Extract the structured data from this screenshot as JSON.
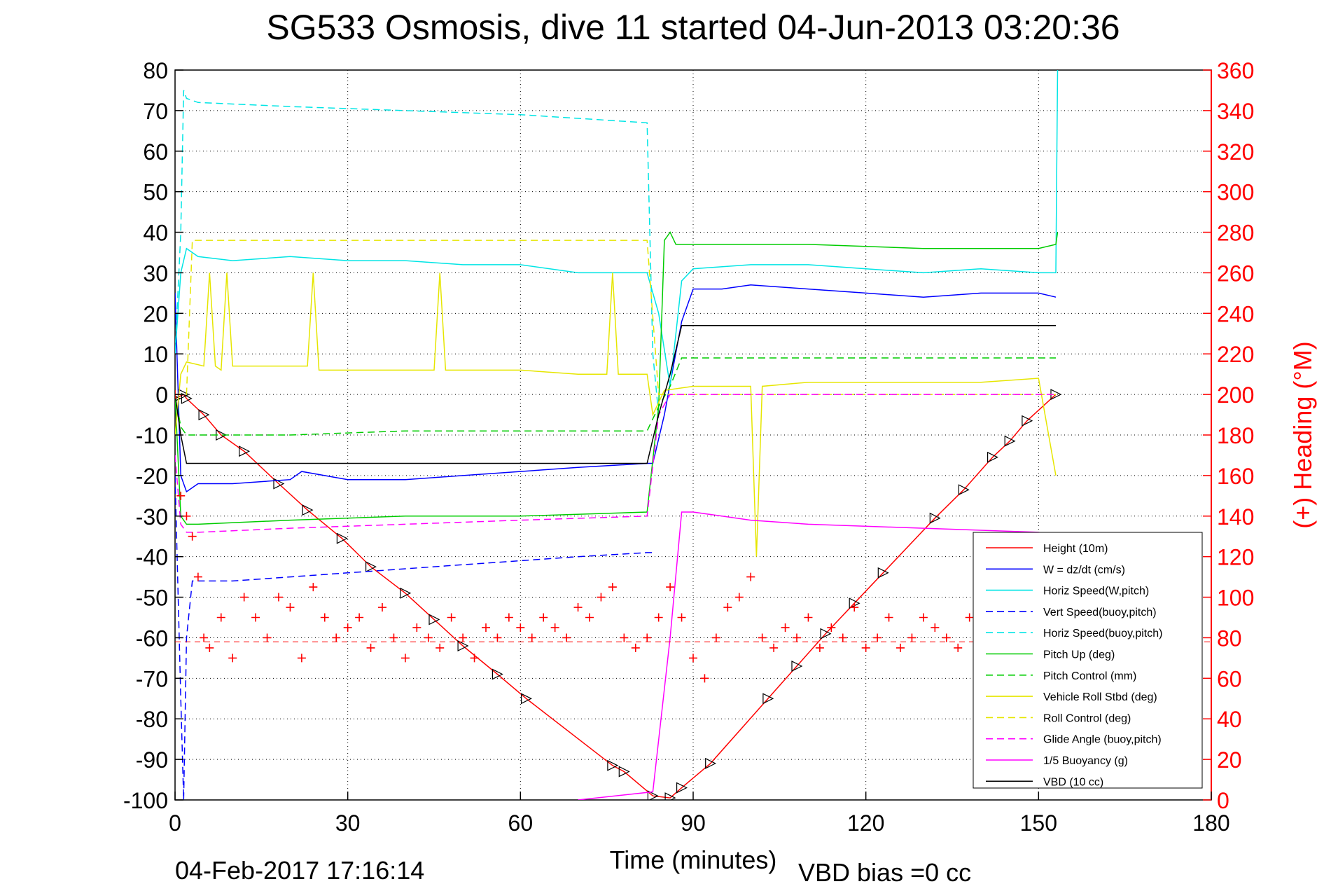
{
  "chart_data": {
    "type": "line",
    "title": "SG533 Osmosis, dive 11 started 04-Jun-2013 03:20:36",
    "xlabel": "Time (minutes)",
    "ylabel_right": "(+) Heading (°M)",
    "xlim": [
      0,
      180
    ],
    "ylim": [
      -100,
      80
    ],
    "ylim_right": [
      0,
      360
    ],
    "x_ticks": [
      "0",
      "30",
      "60",
      "90",
      "120",
      "150",
      "180"
    ],
    "y_ticks": [
      "80",
      "70",
      "60",
      "50",
      "40",
      "30",
      "20",
      "10",
      "0",
      "-10",
      "-20",
      "-30",
      "-40",
      "-50",
      "-60",
      "-70",
      "-80",
      "-90",
      "-100"
    ],
    "y_ticks_right": [
      "360",
      "340",
      "320",
      "300",
      "280",
      "260",
      "240",
      "220",
      "200",
      "180",
      "160",
      "140",
      "120",
      "100",
      "80",
      "60",
      "40",
      "20",
      "0"
    ],
    "footer_date": "04-Feb-2017 17:16:14",
    "footer_bias": "VBD bias =0 cc",
    "legend": [
      {
        "label": "Height (10m)",
        "color": "#ff0000",
        "dash": "solid"
      },
      {
        "label": "W = dz/dt (cm/s)",
        "color": "#0000ff",
        "dash": "solid"
      },
      {
        "label": "Horiz Speed(W,pitch)",
        "color": "#00e5e5",
        "dash": "solid"
      },
      {
        "label": "Vert Speed(buoy,pitch)",
        "color": "#0000ff",
        "dash": "dashed"
      },
      {
        "label": "Horiz Speed(buoy,pitch)",
        "color": "#00e5e5",
        "dash": "dashed"
      },
      {
        "label": "Pitch Up (deg)",
        "color": "#00cc00",
        "dash": "solid"
      },
      {
        "label": "Pitch Control (mm)",
        "color": "#00cc00",
        "dash": "dashed"
      },
      {
        "label": "Vehicle Roll Stbd (deg)",
        "color": "#e6e600",
        "dash": "solid"
      },
      {
        "label": "Roll Control (deg)",
        "color": "#e6e600",
        "dash": "dashed"
      },
      {
        "label": "Glide Angle (buoy,pitch)",
        "color": "#ff00ff",
        "dash": "dashed"
      },
      {
        "label": "1/5 Buoyancy (g)",
        "color": "#ff00ff",
        "dash": "solid"
      },
      {
        "label": "VBD (10 cc)",
        "color": "#000000",
        "dash": "solid"
      }
    ],
    "series": [
      {
        "name": "Height (10m)",
        "color": "#ff0000",
        "dash": "solid",
        "marker": "triangle",
        "x": [
          0,
          1.5,
          2,
          5,
          8,
          12,
          18,
          23,
          29,
          34,
          40,
          45,
          50,
          56,
          61,
          76,
          78,
          83,
          86,
          88,
          93,
          103,
          108,
          113,
          118,
          123,
          132,
          137,
          142,
          145,
          148,
          153
        ],
        "y": [
          -1,
          0,
          -1,
          -5,
          -10,
          -14,
          -22,
          -28.5,
          -35.5,
          -42.5,
          -49,
          -55.5,
          -62,
          -69,
          -75,
          -91.5,
          -93,
          -99,
          -99.5,
          -97,
          -91,
          -75,
          -67,
          -59,
          -51.5,
          -44,
          -30.5,
          -23.5,
          -15.5,
          -11.5,
          -6.5,
          0
        ]
      },
      {
        "name": "W = dz/dt (cm/s)",
        "color": "#0000ff",
        "dash": "solid",
        "x": [
          0,
          1,
          2,
          4,
          10,
          20,
          22,
          30,
          40,
          50,
          60,
          70,
          82,
          83,
          85,
          88,
          90,
          95,
          100,
          110,
          120,
          130,
          140,
          150,
          153
        ],
        "y": [
          25,
          -20,
          -24,
          -22,
          -22,
          -21,
          -19,
          -21,
          -21,
          -20,
          -19,
          -18,
          -17,
          -17,
          -5,
          18,
          26,
          26,
          27,
          26,
          25,
          24,
          25,
          25,
          24
        ]
      },
      {
        "name": "Horiz Speed(W,pitch)",
        "color": "#00e5e5",
        "dash": "solid",
        "x": [
          0,
          1,
          2,
          4,
          10,
          20,
          30,
          40,
          50,
          60,
          70,
          82,
          84,
          86,
          88,
          90,
          100,
          110,
          120,
          130,
          140,
          150,
          153,
          153.3
        ],
        "y": [
          10,
          30,
          36,
          34,
          33,
          34,
          33,
          33,
          32,
          32,
          30,
          30,
          20,
          2,
          28,
          31,
          32,
          32,
          31,
          30,
          31,
          30,
          30,
          80
        ]
      },
      {
        "name": "Vert Speed(buoy,pitch)",
        "color": "#0000ff",
        "dash": "dashed",
        "x": [
          0,
          1,
          1.5,
          2,
          3,
          10,
          20,
          30,
          40,
          50,
          60,
          70,
          82,
          83
        ],
        "y": [
          -20,
          -75,
          -100,
          -60,
          -46,
          -46,
          -45,
          -44,
          -43,
          -42,
          -41,
          -40,
          -39,
          -39
        ]
      },
      {
        "name": "Horiz Speed(buoy,pitch)",
        "color": "#00e5e5",
        "dash": "dashed",
        "x": [
          0,
          1,
          1.5,
          2,
          4,
          20,
          40,
          60,
          82,
          83,
          84
        ],
        "y": [
          10,
          40,
          75,
          73,
          72,
          71,
          70,
          69,
          67,
          10,
          -5
        ]
      },
      {
        "name": "Pitch Up (deg)",
        "color": "#00cc00",
        "dash": "solid",
        "x": [
          0,
          1,
          2,
          4,
          20,
          40,
          60,
          82,
          84,
          85,
          86,
          87,
          88,
          90,
          110,
          130,
          150,
          153,
          153.3
        ],
        "y": [
          0,
          -30,
          -32,
          -32,
          -31,
          -30,
          -30,
          -29,
          -3,
          38,
          40,
          37,
          37,
          37,
          37,
          36,
          36,
          37,
          40
        ]
      },
      {
        "name": "Pitch Control (mm)",
        "color": "#00cc00",
        "dash": "dashed",
        "x": [
          0,
          1,
          2,
          20,
          40,
          60,
          82,
          84,
          86,
          88,
          110,
          130,
          153
        ],
        "y": [
          0,
          -8,
          -10,
          -10,
          -9,
          -9,
          -9,
          -3,
          2,
          9,
          9,
          9,
          9
        ]
      },
      {
        "name": "Vehicle Roll Stbd (deg)",
        "color": "#e6e600",
        "dash": "solid",
        "x": [
          0,
          1,
          2,
          5,
          6,
          7,
          8,
          9,
          10,
          15,
          20,
          23,
          24,
          25,
          30,
          40,
          45,
          46,
          47,
          50,
          60,
          70,
          75,
          76,
          77,
          82,
          83,
          85,
          90,
          95,
          100,
          101,
          102,
          110,
          120,
          130,
          140,
          150,
          153
        ],
        "y": [
          -10,
          5,
          8,
          7,
          30,
          7,
          6,
          30,
          7,
          7,
          7,
          7,
          30,
          6,
          6,
          6,
          6,
          30,
          6,
          6,
          6,
          5,
          5,
          30,
          5,
          5,
          -5,
          1,
          2,
          2,
          2,
          -40,
          2,
          3,
          3,
          3,
          3,
          4,
          -20
        ]
      },
      {
        "name": "Roll Control (deg)",
        "color": "#e6e600",
        "dash": "dashed",
        "x": [
          0,
          2,
          3,
          4,
          30,
          60,
          82,
          84,
          86,
          153
        ],
        "y": [
          0,
          0,
          38,
          38,
          38,
          38,
          38,
          0,
          0,
          0
        ]
      },
      {
        "name": "Glide Angle (buoy,pitch)",
        "color": "#ff00ff",
        "dash": "dashed",
        "x": [
          0,
          1,
          2,
          4,
          20,
          40,
          60,
          82,
          84,
          86,
          153
        ],
        "y": [
          -15,
          -32,
          -34,
          -34,
          -33,
          -32,
          -31,
          -30,
          -5,
          0,
          0
        ]
      },
      {
        "name": "1/5 Buoyancy (g)",
        "color": "#ff00ff",
        "dash": "solid",
        "x": [
          70,
          83,
          86,
          88,
          90,
          95,
          100,
          110,
          130,
          150,
          153
        ],
        "y": [
          -100,
          -98,
          -60,
          -29,
          -29,
          -30,
          -31,
          -32,
          -33,
          -34,
          -35
        ]
      },
      {
        "name": "VBD (10 cc)",
        "color": "#000000",
        "dash": "solid",
        "x": [
          0,
          1,
          2,
          20,
          40,
          60,
          82,
          84,
          86,
          88,
          90,
          110,
          130,
          153
        ],
        "y": [
          0,
          -10,
          -17,
          -17,
          -17,
          -17,
          -17,
          -5,
          5,
          17,
          17,
          17,
          17,
          17
        ]
      }
    ],
    "heading": {
      "name": "Heading",
      "color": "#ff0000",
      "marker": "plus",
      "axis": "right",
      "mean": 78,
      "x": [
        0,
        1,
        2,
        3,
        4,
        5,
        6,
        8,
        10,
        12,
        14,
        16,
        18,
        20,
        22,
        24,
        26,
        28,
        30,
        32,
        34,
        36,
        38,
        40,
        42,
        44,
        46,
        48,
        50,
        52,
        54,
        56,
        58,
        60,
        62,
        64,
        66,
        68,
        70,
        72,
        74,
        76,
        78,
        80,
        82,
        84,
        86,
        88,
        90,
        92,
        94,
        96,
        98,
        100,
        102,
        104,
        106,
        108,
        110,
        112,
        114,
        116,
        118,
        120,
        122,
        124,
        126,
        128,
        130,
        132,
        134,
        136,
        138,
        140,
        142,
        144,
        146,
        148,
        150,
        152,
        153
      ],
      "y": [
        200,
        150,
        140,
        130,
        110,
        80,
        75,
        90,
        70,
        100,
        90,
        80,
        100,
        95,
        70,
        105,
        90,
        80,
        85,
        90,
        75,
        95,
        80,
        70,
        85,
        80,
        75,
        90,
        80,
        70,
        85,
        80,
        90,
        85,
        80,
        90,
        85,
        80,
        95,
        90,
        100,
        105,
        80,
        75,
        80,
        90,
        105,
        90,
        70,
        60,
        80,
        95,
        100,
        110,
        80,
        75,
        85,
        80,
        90,
        75,
        85,
        80,
        95,
        75,
        80,
        90,
        75,
        80,
        90,
        85,
        80,
        75,
        90,
        80,
        85,
        90,
        80,
        90,
        85,
        95,
        90
      ]
    }
  }
}
